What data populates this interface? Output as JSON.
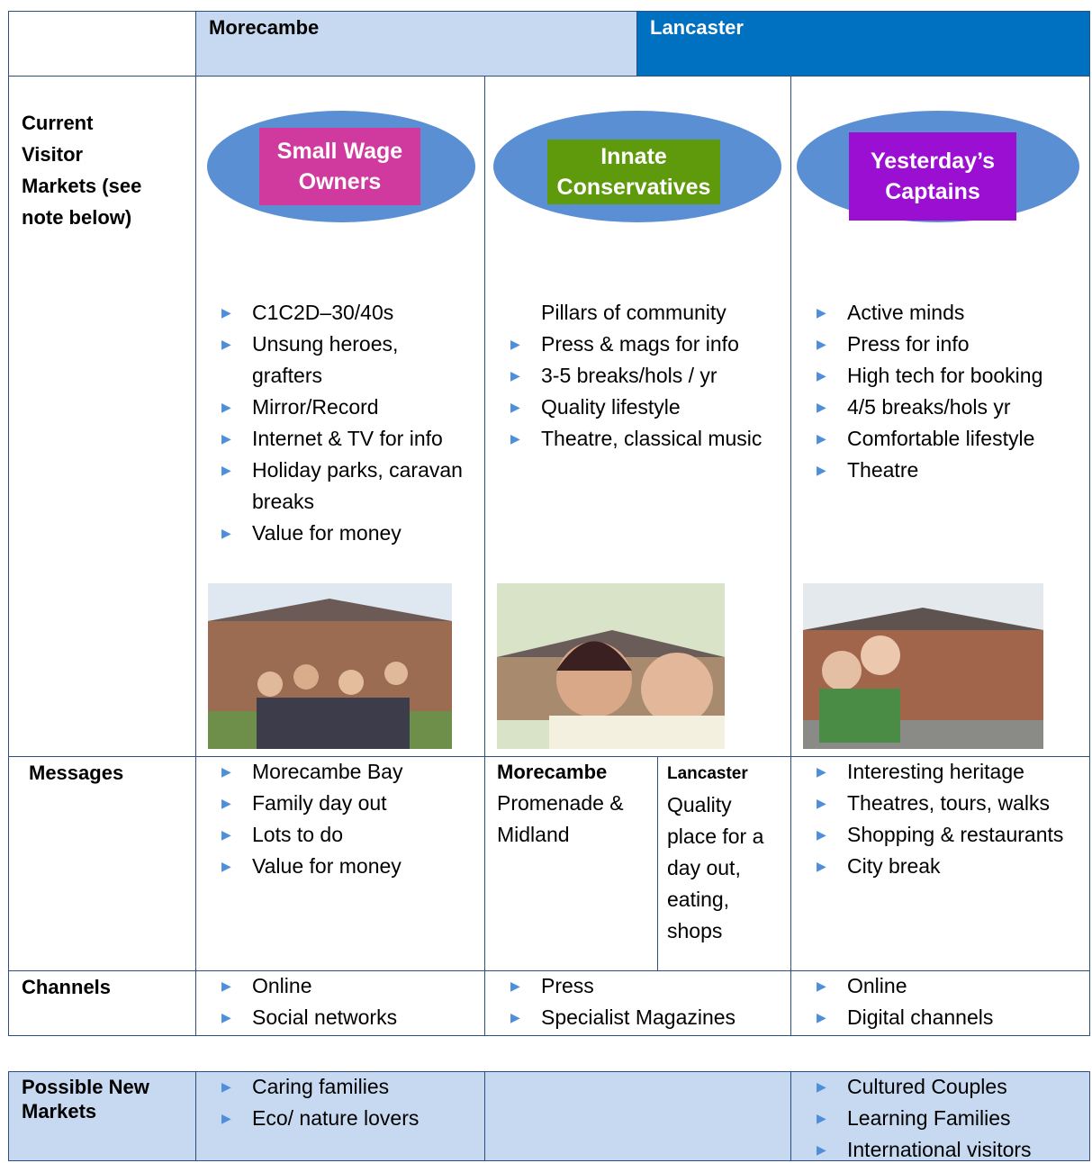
{
  "header": {
    "columns": [
      "Morecambe",
      "Lancaster"
    ]
  },
  "current_visitor_markets": {
    "label": "Current Visitor Markets (see note below)",
    "segments": [
      {
        "name": "Small Wage Owners",
        "items": [
          "C1C2D–30/40s",
          "Unsung heroes, grafters",
          "Mirror/Record",
          "Internet & TV for info",
          "Holiday parks, caravan breaks",
          "Value for money"
        ]
      },
      {
        "name": "Innate Conservatives",
        "intro": "Pillars of community",
        "items": [
          "Press & mags for info",
          "3-5 breaks/hols / yr",
          "Quality lifestyle",
          "Theatre, classical music"
        ]
      },
      {
        "name": "Yesterday’s Captains",
        "items": [
          "Active minds",
          "Press for info",
          "High tech for booking",
          "4/5 breaks/hols yr",
          "Comfortable lifestyle",
          "Theatre"
        ]
      }
    ]
  },
  "messages": {
    "label": "Messages",
    "morecambe_items": [
      "Morecambe Bay",
      "Family day out",
      "Lots to do",
      "Value for money"
    ],
    "middle": [
      {
        "heading": "Morecambe",
        "text": "Promenade & Midland"
      },
      {
        "heading": "Lancaster",
        "text": "Quality place for a day out, eating, shops"
      }
    ],
    "lancaster_items": [
      "Interesting heritage",
      "Theatres, tours, walks",
      "Shopping & restaurants",
      "City break"
    ]
  },
  "channels": {
    "label": "Channels",
    "columns": [
      [
        "Online",
        "Social networks"
      ],
      [
        "Press",
        "Specialist Magazines"
      ],
      [
        "Online",
        "Digital channels"
      ]
    ]
  },
  "new_markets": {
    "label": "Possible New Markets",
    "morecambe_items": [
      "Caring families",
      "Eco/ nature lovers"
    ],
    "lancaster_items": [
      "Cultured Couples",
      "Learning Families",
      "International visitors"
    ]
  }
}
